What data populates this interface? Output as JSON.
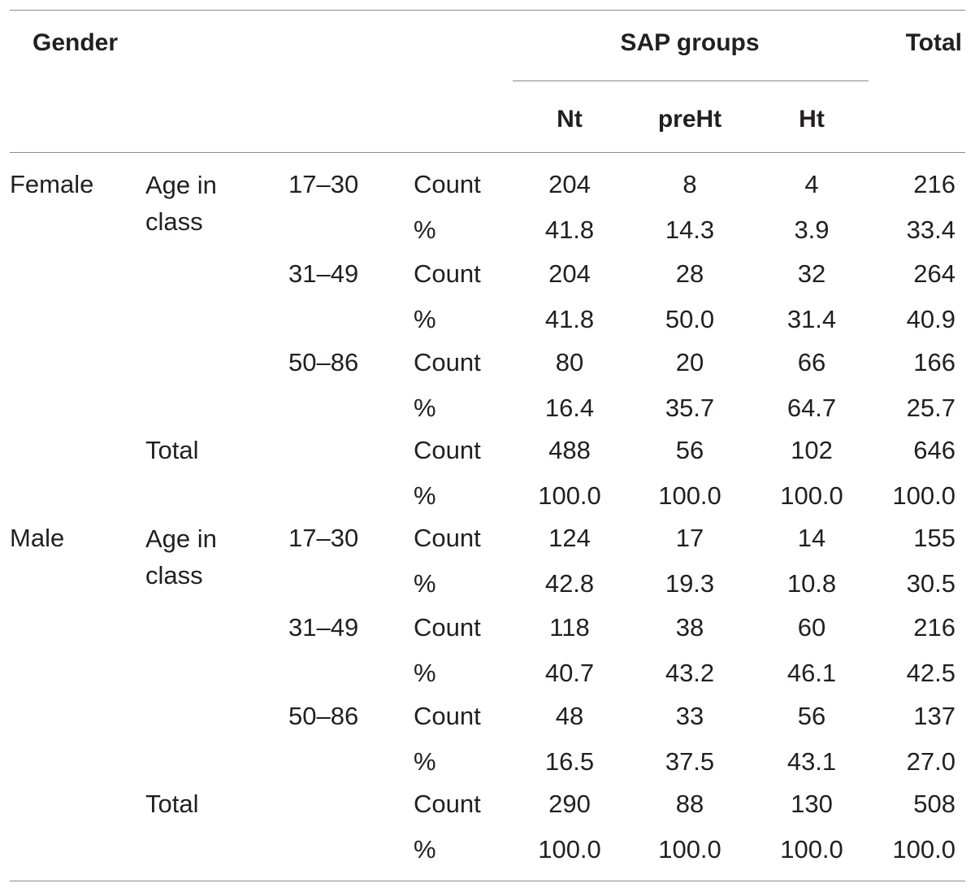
{
  "header": {
    "gender": "Gender",
    "sap_groups": "SAP groups",
    "total": "Total",
    "nt": "Nt",
    "preht": "preHt",
    "ht": "Ht"
  },
  "labels": {
    "female": "Female",
    "male": "Male",
    "age_in_class": "Age in class",
    "total": "Total",
    "count": "Count",
    "pct": "%"
  },
  "rows": [
    {
      "age": "17–30",
      "count": [
        "204",
        "8",
        "4",
        "216"
      ],
      "pct": [
        "41.8",
        "14.3",
        "3.9",
        "33.4"
      ]
    },
    {
      "age": "31–49",
      "count": [
        "204",
        "28",
        "32",
        "264"
      ],
      "pct": [
        "41.8",
        "50.0",
        "31.4",
        "40.9"
      ]
    },
    {
      "age": "50–86",
      "count": [
        "80",
        "20",
        "66",
        "166"
      ],
      "pct": [
        "16.4",
        "35.7",
        "64.7",
        "25.7"
      ]
    },
    {
      "age": "",
      "count": [
        "488",
        "56",
        "102",
        "646"
      ],
      "pct": [
        "100.0",
        "100.0",
        "100.0",
        "100.0"
      ]
    },
    {
      "age": "17–30",
      "count": [
        "124",
        "17",
        "14",
        "155"
      ],
      "pct": [
        "42.8",
        "19.3",
        "10.8",
        "30.5"
      ]
    },
    {
      "age": "31–49",
      "count": [
        "118",
        "38",
        "60",
        "216"
      ],
      "pct": [
        "40.7",
        "43.2",
        "46.1",
        "42.5"
      ]
    },
    {
      "age": "50–86",
      "count": [
        "48",
        "33",
        "56",
        "137"
      ],
      "pct": [
        "16.5",
        "37.5",
        "43.1",
        "27.0"
      ]
    },
    {
      "age": "",
      "count": [
        "290",
        "88",
        "130",
        "508"
      ],
      "pct": [
        "100.0",
        "100.0",
        "100.0",
        "100.0"
      ]
    }
  ]
}
